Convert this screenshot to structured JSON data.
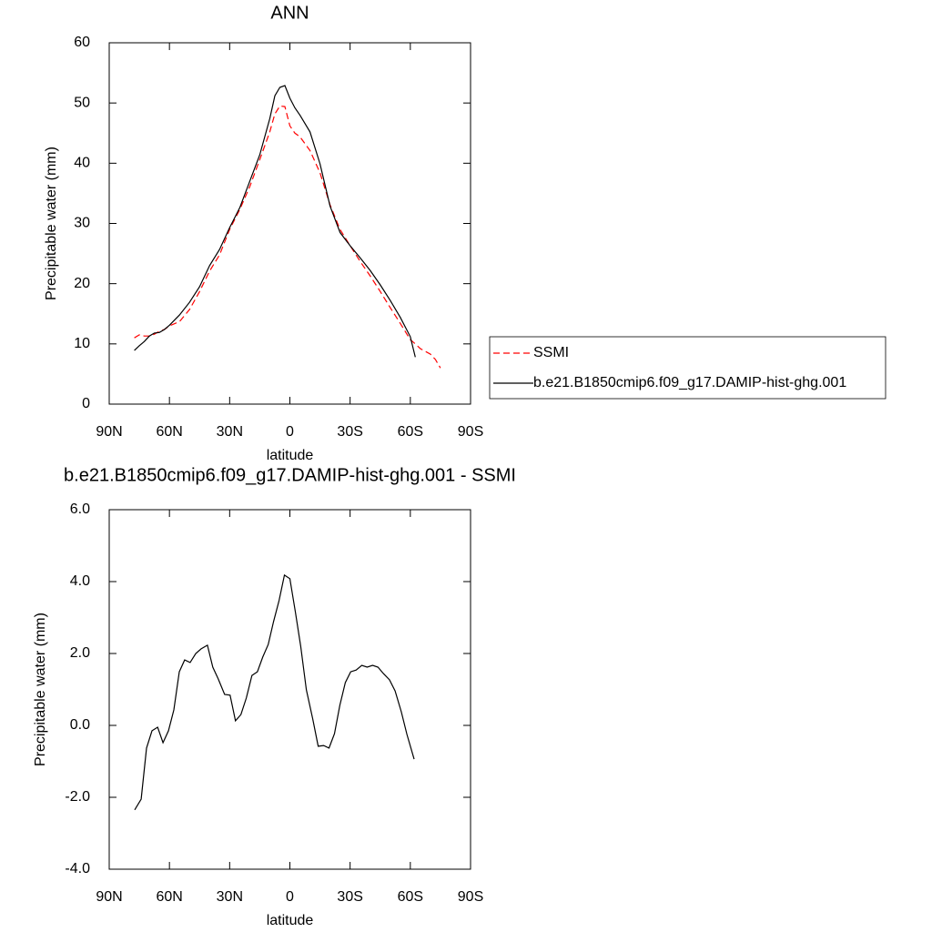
{
  "chart_data": [
    {
      "type": "line",
      "title": "ANN",
      "x_label": "latitude",
      "y_label": "Precipitable water (mm)",
      "x": [
        77.5,
        75,
        72.5,
        70,
        67.5,
        65,
        62.5,
        60,
        55,
        50,
        45,
        40,
        35,
        30,
        25,
        20,
        15,
        10,
        7.5,
        5,
        2.5,
        0,
        -2.5,
        -5,
        -10,
        -15,
        -20,
        -25,
        -30,
        -35,
        -40,
        -45,
        -50,
        -55,
        -60,
        -62.5,
        -65,
        -70,
        -72.5,
        -75
      ],
      "series": [
        {
          "name": "SSMI",
          "color": "#ff0000",
          "line_style": "dashed",
          "values": [
            11.0,
            11.5,
            11.3,
            11.3,
            11.6,
            12.1,
            12.4,
            13.0,
            13.7,
            15.7,
            18.7,
            22.1,
            24.8,
            29.0,
            32.3,
            36.1,
            40.6,
            45.2,
            48.2,
            49.5,
            49.4,
            46.2,
            45.0,
            44.4,
            42.1,
            38.4,
            33.1,
            29.0,
            26.3,
            23.7,
            21.3,
            18.7,
            16.0,
            13.4,
            10.7,
            10.0,
            9.2,
            8.3,
            7.4,
            6.0
          ]
        },
        {
          "name": "b.e21.B1850cmip6.f09_g17.DAMIP-hist-ghg.001",
          "color": "#000000",
          "line_style": "solid",
          "values": [
            8.9,
            9.7,
            10.4,
            11.3,
            11.8,
            11.9,
            12.4,
            13.1,
            14.8,
            16.9,
            19.5,
            23.0,
            25.7,
            29.3,
            32.6,
            37.0,
            41.4,
            47.4,
            51.2,
            52.6,
            52.9,
            50.8,
            49.2,
            48.0,
            45.2,
            39.9,
            32.9,
            28.5,
            26.3,
            24.3,
            22.2,
            19.8,
            17.2,
            14.4,
            11.2,
            7.8,
            null,
            null,
            null,
            null
          ]
        }
      ],
      "xlim": [
        90,
        -90
      ],
      "xticks": [
        {
          "value": 90,
          "label": "90N"
        },
        {
          "value": 60,
          "label": "60N"
        },
        {
          "value": 30,
          "label": "30N"
        },
        0,
        {
          "value": -30,
          "label": "30S"
        },
        {
          "value": -60,
          "label": "60S"
        },
        {
          "value": -90,
          "label": "90S"
        }
      ],
      "ylim": [
        0,
        60
      ],
      "yticks": [
        0,
        10,
        20,
        30,
        40,
        50,
        60
      ],
      "legend": "right"
    },
    {
      "type": "line",
      "title": "b.e21.B1850cmip6.f09_g17.DAMIP-hist-ghg.001 - SSMI",
      "x_label": "latitude",
      "y_label": "Precipitable water (mm)",
      "x": [
        77.3,
        74.1,
        71.4,
        68.7,
        65.9,
        63.2,
        60.5,
        57.8,
        55.1,
        52.4,
        49.7,
        46.9,
        44.2,
        41.1,
        38.4,
        35.7,
        32.5,
        29.8,
        27.1,
        24.4,
        21.7,
        18.9,
        16.2,
        13.5,
        10.8,
        8.1,
        5.4,
        2.7,
        0.0,
        -2.7,
        -5.4,
        -8.2,
        -11.4,
        -14.1,
        -16.8,
        -19.5,
        -22.2,
        -24.9,
        -27.6,
        -30.3,
        -33.0,
        -35.8,
        -38.5,
        -41.2,
        -43.9,
        -46.6,
        -49.6,
        -52.4,
        -55.5,
        -58.3,
        -61.9
      ],
      "series": [
        {
          "name": null,
          "color": "#000000",
          "line_style": "solid",
          "values": [
            -2.35,
            -2.05,
            -0.63,
            -0.15,
            -0.05,
            -0.48,
            -0.15,
            0.43,
            1.49,
            1.82,
            1.75,
            2.0,
            2.13,
            2.23,
            1.62,
            1.29,
            0.86,
            0.84,
            0.13,
            0.3,
            0.76,
            1.39,
            1.49,
            1.9,
            2.25,
            2.89,
            3.47,
            4.18,
            4.08,
            3.16,
            2.2,
            0.99,
            0.18,
            -0.58,
            -0.56,
            -0.63,
            -0.23,
            0.56,
            1.19,
            1.49,
            1.54,
            1.67,
            1.62,
            1.67,
            1.62,
            1.44,
            1.27,
            0.96,
            0.38,
            -0.25,
            -0.94
          ]
        }
      ],
      "xlim": [
        90,
        -90
      ],
      "xticks": [
        {
          "value": 90,
          "label": "90N"
        },
        {
          "value": 60,
          "label": "60N"
        },
        {
          "value": 30,
          "label": "30N"
        },
        0,
        {
          "value": -30,
          "label": "30S"
        },
        {
          "value": -60,
          "label": "60S"
        },
        {
          "value": -90,
          "label": "90S"
        }
      ],
      "ylim": [
        -4,
        6
      ],
      "yticks": [
        {
          "value": -4,
          "label": "-4.0"
        },
        {
          "value": -2,
          "label": "-2.0"
        },
        {
          "value": 0,
          "label": "0.0"
        },
        {
          "value": 2,
          "label": "2.0"
        },
        {
          "value": 4,
          "label": "4.0"
        },
        {
          "value": 6,
          "label": "6.0"
        }
      ]
    }
  ]
}
